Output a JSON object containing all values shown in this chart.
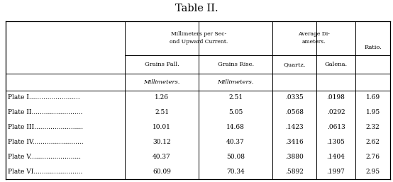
{
  "title": "Table II.",
  "header1_mm": "Millimeters per Sec-\nond Upward Current.",
  "header1_avg": "Average Di-\nameters.",
  "header1_ratio": "Ratio.",
  "header2": [
    "Grains Fall.",
    "Grains Rise.",
    "Quartz.",
    "Galena."
  ],
  "unit_row": [
    "Millimeters.",
    "Millimeters."
  ],
  "plate_names": [
    "Plate I",
    "Plate II",
    "Plate III",
    "Plate IV",
    "Plate V",
    "Plate VI"
  ],
  "dot_counts": [
    24,
    24,
    23,
    24,
    24,
    23
  ],
  "rows": [
    [
      "1.26",
      "2.51",
      ".0335",
      ".0198",
      "1.69"
    ],
    [
      "2.51",
      "5.05",
      ".0568",
      ".0292",
      "1.95"
    ],
    [
      "10.01",
      "14.68",
      ".1423",
      ".0613",
      "2.32"
    ],
    [
      "30.12",
      "40.37",
      ".3416",
      ".1305",
      "2.62"
    ],
    [
      "40.37",
      "50.08",
      ".3880",
      ".1404",
      "2.76"
    ],
    [
      "60.09",
      "70.34",
      ".5892",
      ".1997",
      "2.95"
    ]
  ],
  "bg_color": "#ffffff",
  "text_color": "#000000",
  "line_color": "#000000",
  "fig_w": 5.54,
  "fig_h": 2.57,
  "dpi": 100
}
